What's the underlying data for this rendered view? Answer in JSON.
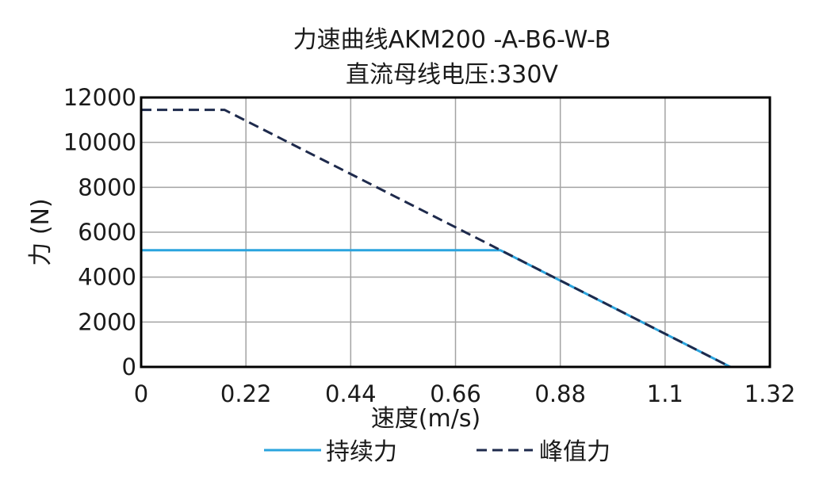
{
  "chart_data": {
    "type": "line",
    "title": "力速曲线AKM200 -A-B6-W-B",
    "subtitle": "直流母线电压:330V",
    "xlabel": "速度(m/s)",
    "ylabel": "力 (N)",
    "xlim": [
      0,
      1.32
    ],
    "ylim": [
      0,
      12000
    ],
    "xticks": [
      0,
      0.22,
      0.44,
      0.66,
      0.88,
      1.1,
      1.32
    ],
    "yticks": [
      0,
      2000,
      4000,
      6000,
      8000,
      10000,
      12000
    ],
    "grid": true,
    "legend_position": "bottom",
    "series": [
      {
        "name": "持续力",
        "color": "#2aa4de",
        "line_style": "solid",
        "points": [
          [
            0,
            5200
          ],
          [
            0.754,
            5200
          ],
          [
            1.237,
            0
          ]
        ]
      },
      {
        "name": "峰值力",
        "color": "#1e2a4c",
        "line_style": "dashed",
        "points": [
          [
            0,
            11450
          ],
          [
            0.175,
            11450
          ],
          [
            1.237,
            0
          ]
        ]
      }
    ]
  }
}
